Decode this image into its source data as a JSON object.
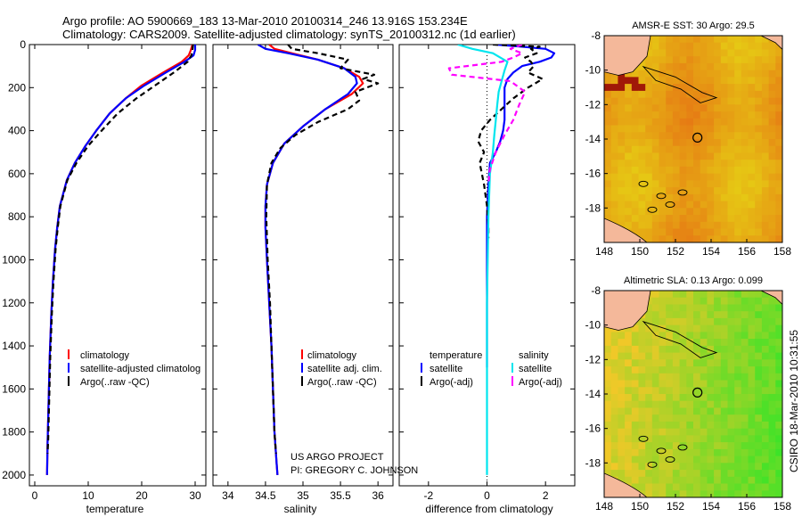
{
  "title_line1": "Argo profile: AO 5900669_183 13-Mar-2010 20100314_246 13.916S 153.234E",
  "title_line2": "Climatology: CARS2009. Satellite-adjusted climatology: synTS_20100312.nc (1d earlier)",
  "side_label": "CSIRO 18-Mar-2010 10:31:55",
  "colors": {
    "climatology": "#ff0000",
    "satellite": "#0000ff",
    "argo": "#000000",
    "cyan": "#00e5ee",
    "magenta": "#ff00ff"
  },
  "chart_data": [
    {
      "id": "temperature",
      "type": "line",
      "xlabel": "temperature",
      "xlim": [
        -1,
        32
      ],
      "ylim": [
        0,
        2050
      ],
      "y_reversed": true,
      "xticks": [
        0,
        10,
        20,
        30
      ],
      "yticks": [
        0,
        200,
        400,
        600,
        800,
        1000,
        1200,
        1400,
        1600,
        1800,
        2000
      ],
      "series": [
        {
          "name": "climatology",
          "color": "#ff0000",
          "dash": "",
          "x": [
            29.5,
            29.2,
            28.8,
            27.5,
            24,
            20,
            17,
            14,
            11.5,
            9.5,
            7.5,
            6,
            4.7,
            4.2,
            3.8,
            3.4,
            3.1,
            2.8,
            2.6,
            2.4,
            2.3
          ],
          "y": [
            0,
            25,
            50,
            80,
            130,
            190,
            250,
            320,
            400,
            470,
            550,
            630,
            750,
            850,
            950,
            1100,
            1250,
            1450,
            1650,
            1850,
            2000
          ]
        },
        {
          "name": "satellite-adjusted climatology",
          "color": "#0000ff",
          "dash": "",
          "x": [
            30,
            30,
            29.7,
            28,
            24.5,
            20.5,
            17,
            14,
            11.5,
            9.5,
            7.5,
            6,
            4.7,
            4.2,
            3.8,
            3.4,
            3.1,
            2.8,
            2.6,
            2.4,
            2.3
          ],
          "y": [
            0,
            25,
            50,
            80,
            130,
            190,
            250,
            320,
            400,
            470,
            550,
            630,
            750,
            850,
            950,
            1100,
            1250,
            1450,
            1650,
            1850,
            2000
          ]
        },
        {
          "name": "Argo(..raw -QC)",
          "color": "#000000",
          "dash": "6,4",
          "x": [
            29.6,
            29.5,
            29.3,
            28.6,
            26,
            22.5,
            19,
            15.5,
            12.5,
            10,
            7.8,
            6.1,
            4.8,
            4.3,
            3.9,
            3.5,
            3.2,
            2.9,
            2.7,
            2.5,
            2.4
          ],
          "y": [
            0,
            25,
            50,
            80,
            130,
            190,
            250,
            320,
            400,
            470,
            550,
            630,
            750,
            850,
            950,
            1100,
            1250,
            1450,
            1650,
            1850,
            1900
          ]
        }
      ],
      "legend": [
        "climatology",
        "satellite-adjusted climatolog",
        "Argo(..raw -QC)"
      ]
    },
    {
      "id": "salinity",
      "type": "line",
      "xlabel": "salinity",
      "xlim": [
        33.8,
        36.2
      ],
      "ylim": [
        0,
        2050
      ],
      "y_reversed": true,
      "xticks": [
        34,
        34.5,
        35,
        35.5,
        36
      ],
      "series": [
        {
          "name": "climatology",
          "color": "#ff0000",
          "dash": "",
          "x": [
            34.55,
            34.62,
            34.85,
            35.2,
            35.55,
            35.75,
            35.8,
            35.65,
            35.3,
            35,
            34.75,
            34.6,
            34.52,
            34.5,
            34.5,
            34.52,
            34.55,
            34.58,
            34.6,
            34.62,
            34.65,
            34.66
          ],
          "y": [
            0,
            20,
            40,
            70,
            110,
            150,
            180,
            230,
            300,
            380,
            460,
            550,
            650,
            750,
            850,
            1000,
            1200,
            1400,
            1600,
            1800,
            1950,
            2000
          ]
        },
        {
          "name": "satellite adj. clim.",
          "color": "#0000ff",
          "dash": "",
          "x": [
            34.4,
            34.5,
            34.8,
            35.2,
            35.55,
            35.7,
            35.72,
            35.6,
            35.3,
            35,
            34.75,
            34.6,
            34.52,
            34.5,
            34.5,
            34.52,
            34.55,
            34.58,
            34.6,
            34.62,
            34.65,
            34.66
          ],
          "y": [
            0,
            20,
            40,
            70,
            110,
            150,
            180,
            230,
            300,
            380,
            460,
            550,
            650,
            750,
            850,
            1000,
            1200,
            1400,
            1600,
            1800,
            1950,
            2000
          ]
        },
        {
          "name": "Argo(..raw -QC)",
          "color": "#000000",
          "dash": "6,4",
          "x": [
            34.8,
            34.85,
            35.2,
            35.6,
            35.5,
            35.95,
            35.8,
            36,
            35.7,
            35.75,
            35.6,
            35.2,
            34.9,
            34.7,
            34.58,
            34.52,
            34.51,
            34.53,
            34.56,
            34.58,
            34.6,
            34.62,
            34.64
          ],
          "y": [
            0,
            20,
            40,
            70,
            110,
            140,
            160,
            180,
            220,
            260,
            300,
            360,
            420,
            480,
            550,
            650,
            800,
            1000,
            1200,
            1400,
            1600,
            1800,
            1900
          ]
        }
      ],
      "legend": [
        "climatology",
        "satellite adj. clim.",
        "Argo(..raw -QC)"
      ],
      "annotation": [
        "US ARGO PROJECT",
        "PI: GREGORY C. JOHNSON"
      ]
    },
    {
      "id": "difference",
      "type": "line",
      "xlabel": "difference from climatology",
      "xlim": [
        -3,
        3
      ],
      "ylim": [
        0,
        2050
      ],
      "y_reversed": true,
      "xticks": [
        -2,
        0,
        2
      ],
      "zero_line": true,
      "series": [
        {
          "name": "temperature satellite",
          "color": "#0000ff",
          "dash": "",
          "x": [
            0.3,
            1.2,
            2,
            2.3,
            2.2,
            1.8,
            1.2,
            0.9,
            0.7,
            0.6,
            0.6,
            0.6,
            0.6,
            0.55,
            0.45,
            0.3,
            0.1,
            0.05,
            0,
            0,
            0
          ],
          "y": [
            0,
            10,
            20,
            40,
            60,
            80,
            100,
            130,
            160,
            200,
            250,
            300,
            350,
            400,
            450,
            500,
            550,
            650,
            800,
            1000,
            1500
          ]
        },
        {
          "name": "temperature Argo(-adj)",
          "color": "#000000",
          "dash": "6,4",
          "x": [
            0.2,
            1.8,
            1.5,
            1.7,
            1.3,
            1.5,
            1.6,
            1.4,
            1.9,
            1.4,
            0.9,
            0.5,
            0.1,
            -0.2,
            -0.3,
            -0.1,
            -0.25,
            -0.1,
            0,
            0.05,
            0.05
          ],
          "y": [
            0,
            10,
            20,
            40,
            60,
            80,
            100,
            130,
            160,
            200,
            250,
            300,
            350,
            400,
            450,
            500,
            550,
            650,
            750,
            850,
            900
          ]
        },
        {
          "name": "salinity satellite",
          "color": "#00e5ee",
          "dash": "",
          "x": [
            -1,
            -0.5,
            0.2,
            0.7,
            0.6,
            0.5,
            0.4,
            0.35,
            0.3,
            0.25,
            0.2,
            0.1,
            0.05,
            0,
            0,
            0
          ],
          "y": [
            0,
            20,
            40,
            80,
            120,
            170,
            220,
            280,
            350,
            420,
            500,
            600,
            800,
            1200,
            1600,
            2000
          ]
        },
        {
          "name": "salinity Argo(-adj)",
          "color": "#ff00ff",
          "dash": "6,4",
          "x": [
            1.2,
            0.8,
            1.2,
            0.9,
            0.5,
            -1.3,
            -1.2,
            0.8,
            1.3,
            1.1,
            0.9,
            0.6,
            0.3,
            0.1,
            0.05
          ],
          "y": [
            0,
            20,
            40,
            60,
            80,
            110,
            140,
            170,
            220,
            280,
            350,
            420,
            500,
            580,
            650
          ]
        }
      ],
      "legend_headers": [
        "temperature",
        "salinity"
      ],
      "legend_left": [
        "satellite",
        "Argo(-adj)"
      ],
      "legend_right": [
        "satellite",
        "Argo(-adj)"
      ]
    }
  ],
  "maps": [
    {
      "id": "sst",
      "title": "AMSR-E SST: 30 Argo: 29.5",
      "xticks": [
        148,
        150,
        152,
        154,
        156,
        158
      ],
      "yticks": [
        -8,
        -10,
        -12,
        -14,
        -16,
        -18
      ],
      "xlim": [
        148,
        158
      ],
      "ylim": [
        -20,
        -8
      ],
      "argo": [
        153.234,
        -13.916
      ],
      "palette": "sst"
    },
    {
      "id": "sla",
      "title": "Altimetric SLA: 0.13 Argo: 0.099",
      "xticks": [
        148,
        150,
        152,
        154,
        156,
        158
      ],
      "yticks": [
        -8,
        -10,
        -12,
        -14,
        -16,
        -18
      ],
      "xlim": [
        148,
        158
      ],
      "ylim": [
        -20,
        -8
      ],
      "argo": [
        153.234,
        -13.916
      ],
      "palette": "sla"
    }
  ]
}
